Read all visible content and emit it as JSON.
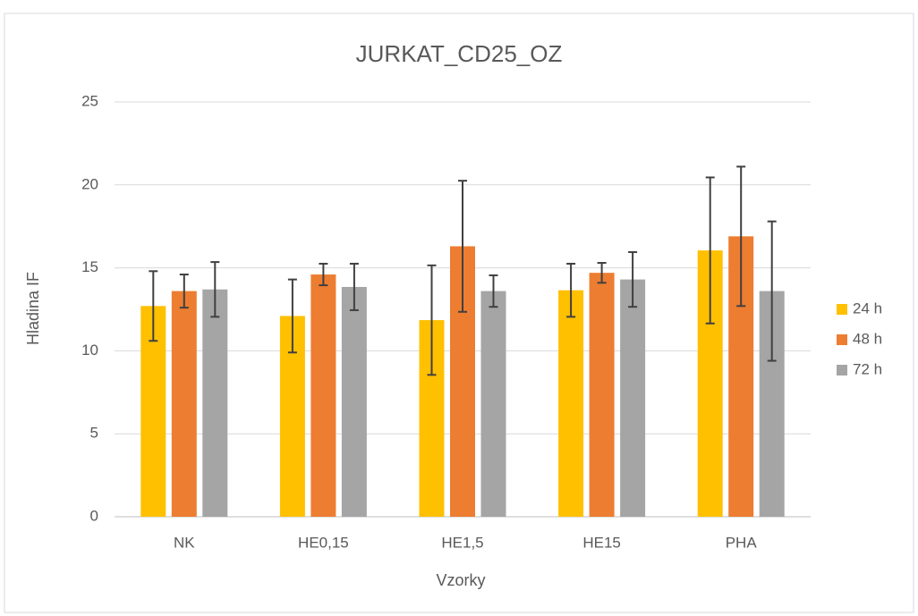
{
  "chart_data": {
    "type": "bar",
    "title": "JURKAT_CD25_OZ",
    "x_label": "Vzorky",
    "y_label": "Hladina IF",
    "categories": [
      "NK",
      "HE0,15",
      "HE1,5",
      "HE15",
      "PHA"
    ],
    "series": [
      {
        "name": "24 h",
        "color": "#ffc000",
        "values": [
          12.7,
          12.1,
          11.85,
          13.65,
          16.05
        ],
        "errors": [
          2.1,
          2.2,
          3.3,
          1.6,
          4.4
        ]
      },
      {
        "name": "48 h",
        "color": "#ed7d31",
        "values": [
          13.6,
          14.6,
          16.3,
          14.7,
          16.9
        ],
        "errors": [
          1.0,
          0.65,
          3.95,
          0.6,
          4.2
        ]
      },
      {
        "name": "72 h",
        "color": "#a5a5a5",
        "values": [
          13.7,
          13.85,
          13.6,
          14.3,
          13.6
        ],
        "errors": [
          1.65,
          1.4,
          0.95,
          1.65,
          4.2
        ]
      }
    ],
    "ylim": [
      0,
      25
    ],
    "yticks": [
      0,
      5,
      10,
      15,
      20,
      25
    ],
    "grid": true,
    "legend": "right"
  }
}
